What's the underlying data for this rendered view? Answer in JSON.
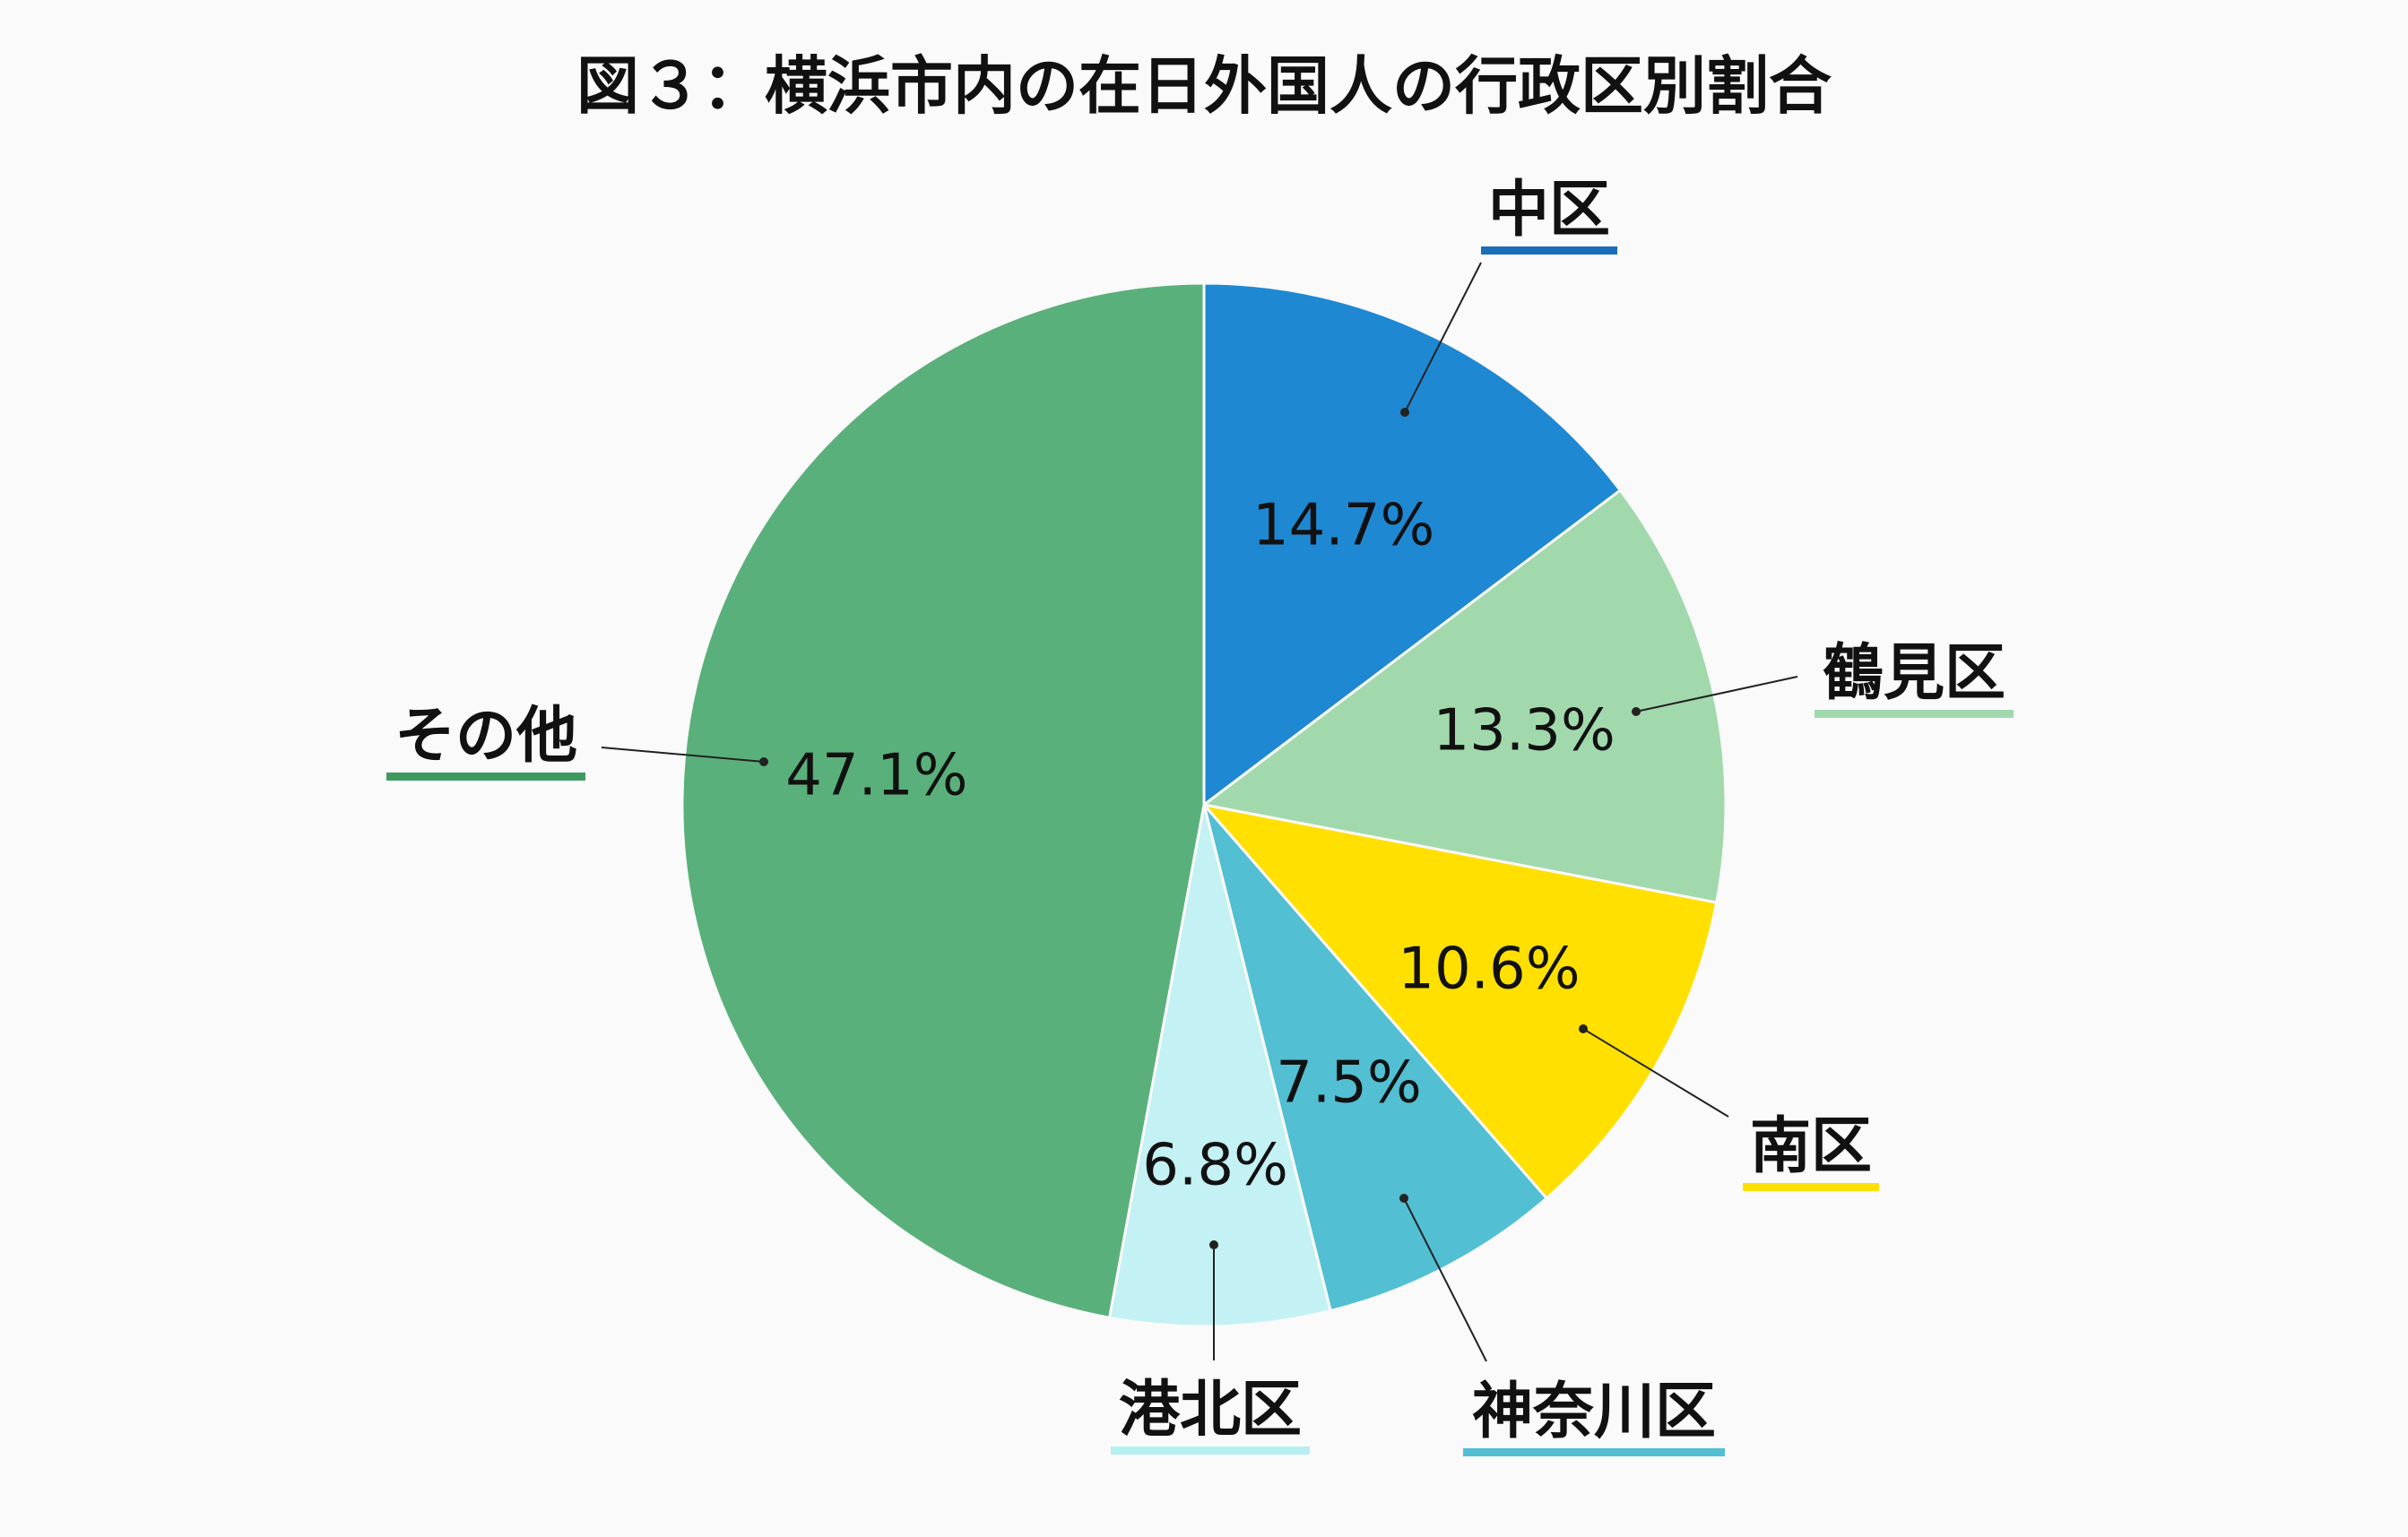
{
  "chart_data": {
    "type": "pie",
    "title": "図３：横浜市内の在日外国人の行政区別割合",
    "start_angle": "12 o'clock",
    "direction": "clockwise",
    "slices": [
      {
        "label": "中区",
        "value": 14.7,
        "value_label": "14.7%",
        "color": "#1f88d2",
        "underline_color": "#1a6eb8"
      },
      {
        "label": "鶴見区",
        "value": 13.3,
        "value_label": "13.3%",
        "color": "#a1d9ad",
        "underline_color": "#a1d9ad"
      },
      {
        "label": "南区",
        "value": 10.6,
        "value_label": "10.6%",
        "color": "#ffe000",
        "underline_color": "#ffe000"
      },
      {
        "label": "神奈川区",
        "value": 7.5,
        "value_label": "7.5%",
        "color": "#52bfd3",
        "underline_color": "#52bfd3"
      },
      {
        "label": "港北区",
        "value": 6.8,
        "value_label": "6.8%",
        "color": "#c4f1f3",
        "underline_color": "#b6f0f2"
      },
      {
        "label": "その他",
        "value": 47.1,
        "value_label": "47.1%",
        "color": "#5ab07b",
        "underline_color": "#3f9a60"
      }
    ]
  }
}
